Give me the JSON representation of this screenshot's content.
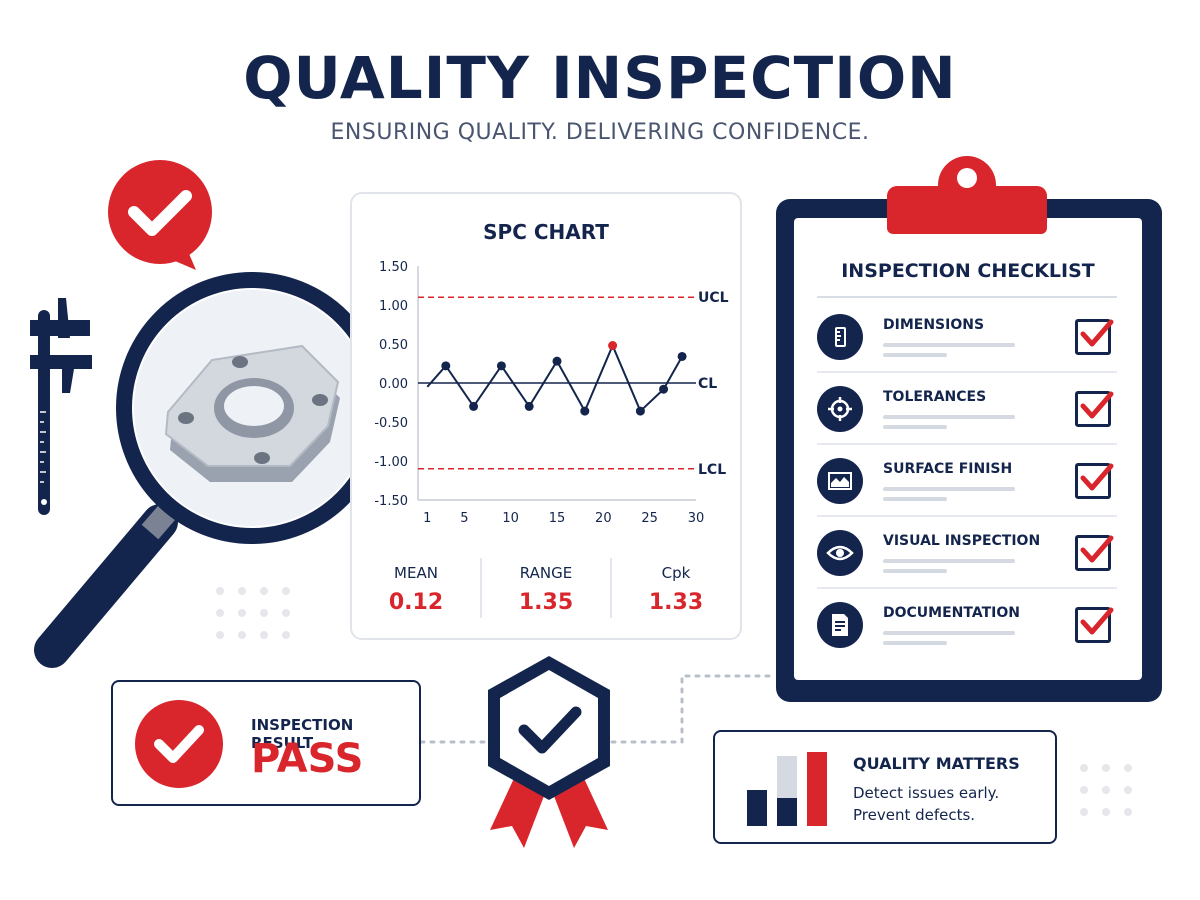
{
  "header": {
    "title": "QUALITY INSPECTION",
    "subtitle": "ENSURING QUALITY. DELIVERING CONFIDENCE."
  },
  "colors": {
    "navy": "#14254d",
    "red": "#d9262c",
    "light": "#e1e4ea"
  },
  "spc": {
    "title": "SPC CHART",
    "stats": [
      {
        "label": "MEAN",
        "value": "0.12"
      },
      {
        "label": "RANGE",
        "value": "1.35"
      },
      {
        "label": "Cpk",
        "value": "1.33"
      }
    ]
  },
  "chart_data": {
    "type": "line",
    "title": "SPC CHART",
    "x_ticks": [
      1,
      5,
      10,
      15,
      20,
      25,
      30
    ],
    "y_ticks": [
      "1.50",
      "1.00",
      "0.50",
      "0.00",
      "-0.50",
      "-1.00",
      "-1.50"
    ],
    "ylim": [
      -1.5,
      1.5
    ],
    "xlim": [
      0,
      30
    ],
    "grid": false,
    "control_lines": [
      {
        "name": "UCL",
        "value": 1.1
      },
      {
        "name": "CL",
        "value": 0.0
      },
      {
        "name": "LCL",
        "value": -1.1
      }
    ],
    "x": [
      1,
      3,
      6,
      9,
      12,
      15,
      18,
      21,
      24,
      26.5,
      28.5
    ],
    "values": [
      -0.05,
      0.22,
      -0.3,
      0.22,
      -0.3,
      0.28,
      -0.36,
      0.48,
      -0.36,
      -0.08,
      0.34
    ],
    "highlight_index": 7
  },
  "checklist": {
    "title": "INSPECTION CHECKLIST",
    "items": [
      {
        "label": "DIMENSIONS",
        "icon": "ruler-icon"
      },
      {
        "label": "TOLERANCES",
        "icon": "crosshair-icon"
      },
      {
        "label": "SURFACE FINISH",
        "icon": "surface-icon"
      },
      {
        "label": "VISUAL INSPECTION",
        "icon": "eye-icon"
      },
      {
        "label": "DOCUMENTATION",
        "icon": "document-icon"
      }
    ]
  },
  "result": {
    "label": "INSPECTION RESULT",
    "value": "PASS"
  },
  "quality": {
    "title": "QUALITY MATTERS",
    "line1": "Detect issues early.",
    "line2": "Prevent defects."
  }
}
